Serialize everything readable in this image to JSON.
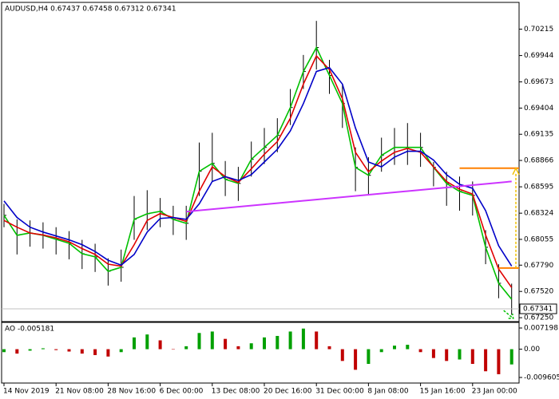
{
  "chart_data": [
    {
      "type": "ohlc",
      "title": "AUDUSD,H4 0.67437 0.67458 0.67312 0.67341",
      "categories": [
        "14 Nov 2019",
        null,
        null,
        null,
        "21 Nov 08:00",
        null,
        null,
        null,
        "28 Nov 16:00",
        null,
        null,
        null,
        "6 Dec 00:00",
        null,
        null,
        null,
        "13 Dec 08:00",
        null,
        null,
        null,
        "20 Dec 16:00",
        null,
        null,
        null,
        "31 Dec 00:00",
        null,
        null,
        null,
        "8 Jan 08:00",
        null,
        null,
        null,
        "15 Jan 16:00",
        null,
        null,
        null,
        "23 Jan 00:00",
        null,
        null,
        null
      ],
      "high": [
        0.6842,
        0.6826,
        0.6825,
        0.6823,
        0.6818,
        0.6814,
        0.6805,
        0.6801,
        0.6786,
        0.6795,
        0.685,
        0.6856,
        0.6848,
        0.684,
        0.684,
        0.6905,
        0.6915,
        0.6886,
        0.688,
        0.6906,
        0.692,
        0.693,
        0.696,
        0.6995,
        0.703,
        0.699,
        0.6965,
        0.69,
        0.689,
        0.691,
        0.692,
        0.6925,
        0.6915,
        0.6885,
        0.6875,
        0.687,
        0.6865,
        0.6815,
        0.678,
        0.676
      ],
      "low": [
        0.6818,
        0.679,
        0.6798,
        0.6796,
        0.679,
        0.6785,
        0.6775,
        0.6772,
        0.6758,
        0.6762,
        0.6805,
        0.6815,
        0.6818,
        0.681,
        0.6805,
        0.685,
        0.6865,
        0.685,
        0.6845,
        0.687,
        0.6883,
        0.6895,
        0.6923,
        0.696,
        0.698,
        0.6955,
        0.692,
        0.6855,
        0.6852,
        0.6875,
        0.6882,
        0.6882,
        0.688,
        0.686,
        0.684,
        0.6835,
        0.683,
        0.678,
        0.6745,
        0.6728
      ],
      "close": [
        0.68302,
        0.68097,
        0.68121,
        0.68097,
        0.68056,
        0.68015,
        0.67908,
        0.67875,
        0.67727,
        0.67768,
        0.68261,
        0.68318,
        0.68343,
        0.68261,
        0.6822,
        0.68754,
        0.68836,
        0.68672,
        0.6863,
        0.68877,
        0.69,
        0.69123,
        0.6941,
        0.6978,
        0.70026,
        0.69739,
        0.69451,
        0.68795,
        0.68713,
        0.68918,
        0.69,
        0.69,
        0.69,
        0.68795,
        0.6863,
        0.68548,
        0.68507,
        0.67974,
        0.67604,
        0.67341
      ],
      "bar_color": "#000000",
      "overlays": [
        {
          "color": "#00c000",
          "values": [
            0.68302,
            0.68097,
            0.68121,
            0.68097,
            0.68056,
            0.68015,
            0.67908,
            0.67875,
            0.67727,
            0.67768,
            0.68261,
            0.68318,
            0.68343,
            0.68261,
            0.6822,
            0.68754,
            0.68836,
            0.68672,
            0.6863,
            0.68877,
            0.69,
            0.69123,
            0.6941,
            0.6978,
            0.70026,
            0.69739,
            0.69451,
            0.68795,
            0.68713,
            0.68918,
            0.69,
            0.69,
            0.69,
            0.68795,
            0.6863,
            0.68548,
            0.68507,
            0.67974,
            0.67604,
            0.6744
          ]
        },
        {
          "color": "#e00000",
          "values": [
            0.6825,
            0.6818,
            0.6812,
            0.681,
            0.6807,
            0.6803,
            0.6796,
            0.679,
            0.678,
            0.6778,
            0.68,
            0.6825,
            0.6832,
            0.6828,
            0.6824,
            0.6855,
            0.688,
            0.687,
            0.6864,
            0.6878,
            0.6893,
            0.6906,
            0.693,
            0.6965,
            0.6994,
            0.698,
            0.695,
            0.6895,
            0.6875,
            0.6886,
            0.6895,
            0.6899,
            0.6895,
            0.688,
            0.6865,
            0.6857,
            0.6852,
            0.681,
            0.6775,
            0.6756
          ]
        },
        {
          "color": "#0000c8",
          "values": [
            0.6845,
            0.6828,
            0.6818,
            0.6813,
            0.6809,
            0.6805,
            0.68,
            0.6793,
            0.6784,
            0.6779,
            0.679,
            0.6813,
            0.6827,
            0.6828,
            0.6826,
            0.6842,
            0.6865,
            0.687,
            0.6866,
            0.6872,
            0.6885,
            0.6898,
            0.6917,
            0.6945,
            0.6978,
            0.6982,
            0.6965,
            0.692,
            0.6885,
            0.688,
            0.689,
            0.6896,
            0.6896,
            0.6887,
            0.6872,
            0.6862,
            0.6858,
            0.6835,
            0.6799,
            0.6778
          ]
        }
      ],
      "trendline": {
        "x": [
          14,
          39
        ],
        "y": [
          0.6834,
          0.6865
        ],
        "color": "#cc33ff"
      },
      "levels": [
        {
          "value": 0.68786,
          "from": 35,
          "color": "#ff8000"
        },
        {
          "value": 0.6776,
          "from": 38,
          "color": "#ff8000"
        }
      ],
      "target_color": "#f0c000",
      "down_arrow_color": "#00c000",
      "current_price": 0.67341,
      "ylim": [
        0.6721,
        0.7049
      ],
      "yticks": [
        0.70215,
        0.69944,
        0.69673,
        0.69404,
        0.69135,
        0.68866,
        0.68595,
        0.68324,
        0.68055,
        {
          "value": 0.6779,
          "label": "0.67790"
        },
        {
          "value": 0.6752,
          "label": "0.67520"
        },
        {
          "value": 0.6725,
          "label": "0.67250"
        }
      ]
    },
    {
      "type": "bar",
      "title": "AO -0.005181",
      "values": [
        -0.001,
        -0.0015,
        -0.0005,
        0.0003,
        -0.0003,
        -0.0008,
        -0.0015,
        -0.002,
        -0.0025,
        -0.001,
        0.004,
        0.005,
        0.003,
        0.0,
        0.001,
        0.0055,
        0.006,
        0.0035,
        0.001,
        0.002,
        0.004,
        0.0045,
        0.006,
        0.007,
        0.006,
        0.001,
        -0.004,
        -0.007,
        -0.005,
        -0.001,
        0.0012,
        0.0015,
        -0.001,
        -0.003,
        -0.004,
        -0.0035,
        -0.005,
        -0.0075,
        -0.0085,
        -0.005181
      ],
      "up_color": "#00a000",
      "down_color": "#c00000",
      "ylim": [
        -0.0115,
        0.0091
      ],
      "yticks": [
        0.007198,
        {
          "value": 0,
          "label": "0.00"
        },
        -0.009605
      ]
    }
  ]
}
